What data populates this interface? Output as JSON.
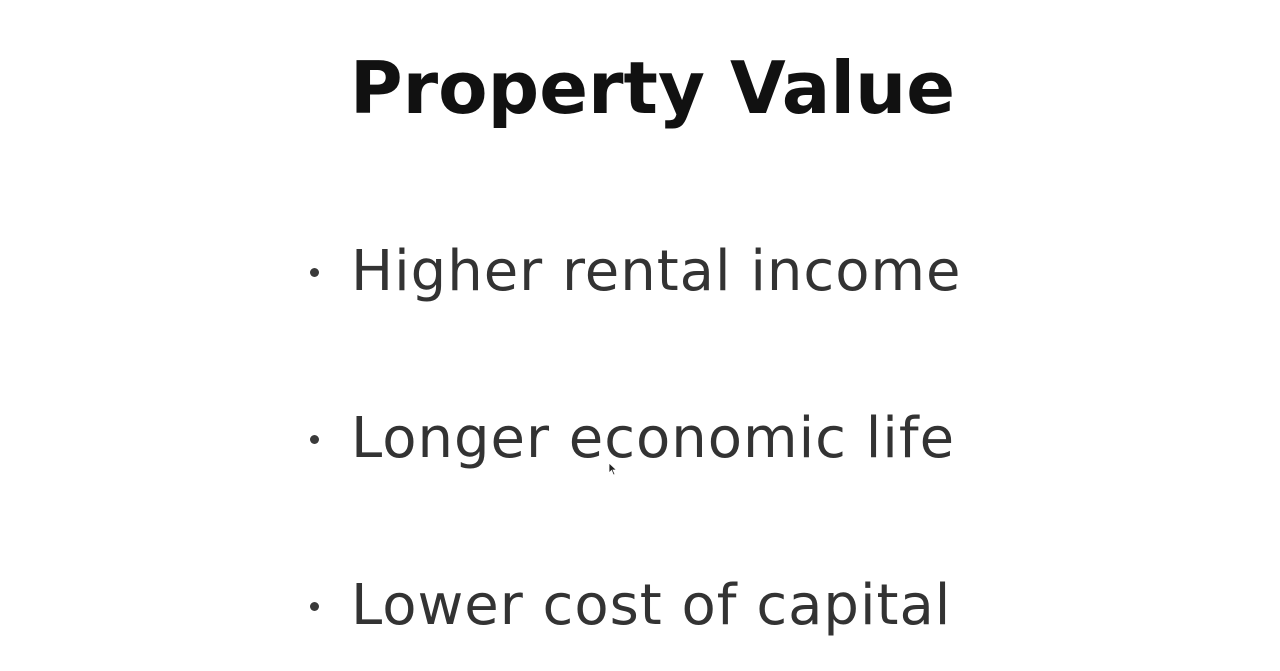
{
  "slide": {
    "title": "Property Value",
    "bullets": [
      {
        "text": "Higher rental income"
      },
      {
        "text": "Longer economic life"
      },
      {
        "text": "Lower cost of capital"
      }
    ]
  },
  "colors": {
    "background": "#ffffff",
    "title": "#111111",
    "bullet_text": "#333333",
    "bullet_dot": "#3a3a3a"
  },
  "icons": {
    "cursor": "mouse-pointer-icon"
  }
}
